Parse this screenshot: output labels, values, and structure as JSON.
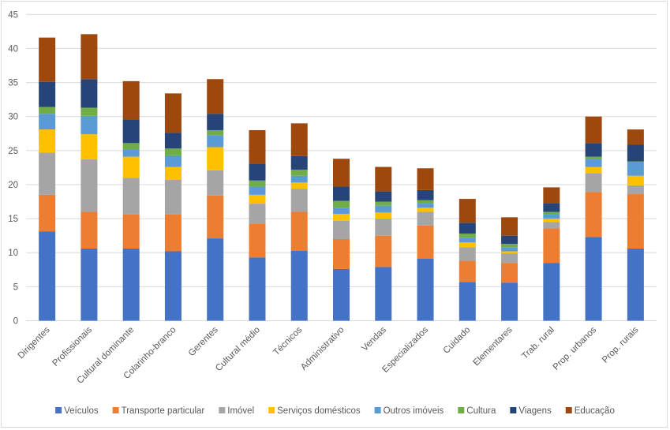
{
  "chart_data": {
    "type": "bar",
    "stacked": true,
    "title": "",
    "xlabel": "",
    "ylabel": "",
    "ylim": [
      0,
      45
    ],
    "yticks": [
      0,
      5,
      10,
      15,
      20,
      25,
      30,
      35,
      40,
      45
    ],
    "grid": true,
    "legend_position": "bottom",
    "categories": [
      "Dirigentes",
      "Profissionais",
      "Cultural dominante",
      "Colarinho-branco",
      "Gerentes",
      "Cultural médio",
      "Técnicos",
      "Administrativo",
      "Vendas",
      "Especializados",
      "Cuidado",
      "Elementares",
      "Trab. rural",
      "Prop. urbanos",
      "Prop. rurais"
    ],
    "series": [
      {
        "name": "Veículos",
        "color": "#4472C4",
        "values": [
          13.1,
          10.6,
          10.6,
          10.2,
          12.1,
          9.3,
          10.3,
          7.6,
          7.9,
          9.1,
          5.7,
          5.6,
          8.5,
          12.3,
          10.6
        ]
      },
      {
        "name": "Transporte particular",
        "color": "#ED7D31",
        "values": [
          5.4,
          5.4,
          5.0,
          5.4,
          6.3,
          4.9,
          5.7,
          4.4,
          4.6,
          4.9,
          3.1,
          2.9,
          5.1,
          6.6,
          8.0
        ]
      },
      {
        "name": "Imóvel",
        "color": "#A5A5A5",
        "values": [
          6.2,
          7.7,
          5.4,
          5.1,
          3.7,
          3.0,
          3.4,
          2.7,
          2.5,
          2.0,
          2.0,
          1.4,
          0.9,
          2.8,
          1.3
        ]
      },
      {
        "name": "Serviços domésticos",
        "color": "#FFC000",
        "values": [
          3.4,
          3.7,
          3.1,
          1.9,
          3.4,
          1.3,
          0.9,
          1.0,
          0.9,
          0.6,
          0.7,
          0.3,
          0.5,
          0.9,
          1.4
        ]
      },
      {
        "name": "Outros imóveis",
        "color": "#5B9BD5",
        "values": [
          2.3,
          2.7,
          1.0,
          1.7,
          1.7,
          1.2,
          1.0,
          0.9,
          1.0,
          0.6,
          0.7,
          0.6,
          0.7,
          1.1,
          2.0
        ]
      },
      {
        "name": "Cultura",
        "color": "#70AD47",
        "values": [
          1.0,
          1.2,
          1.0,
          1.0,
          0.8,
          0.9,
          0.9,
          1.0,
          0.6,
          0.5,
          0.6,
          0.5,
          0.3,
          0.4,
          0.1
        ]
      },
      {
        "name": "Viagens",
        "color": "#264478",
        "values": [
          3.7,
          4.2,
          3.5,
          2.3,
          2.4,
          2.5,
          2.0,
          2.1,
          1.5,
          1.5,
          1.6,
          1.2,
          1.3,
          2.0,
          2.5
        ]
      },
      {
        "name": "Educação",
        "color": "#9E480E",
        "values": [
          6.5,
          6.6,
          5.6,
          5.8,
          5.1,
          4.9,
          4.8,
          4.1,
          3.6,
          3.2,
          3.5,
          2.7,
          2.3,
          3.9,
          2.2
        ]
      }
    ]
  }
}
